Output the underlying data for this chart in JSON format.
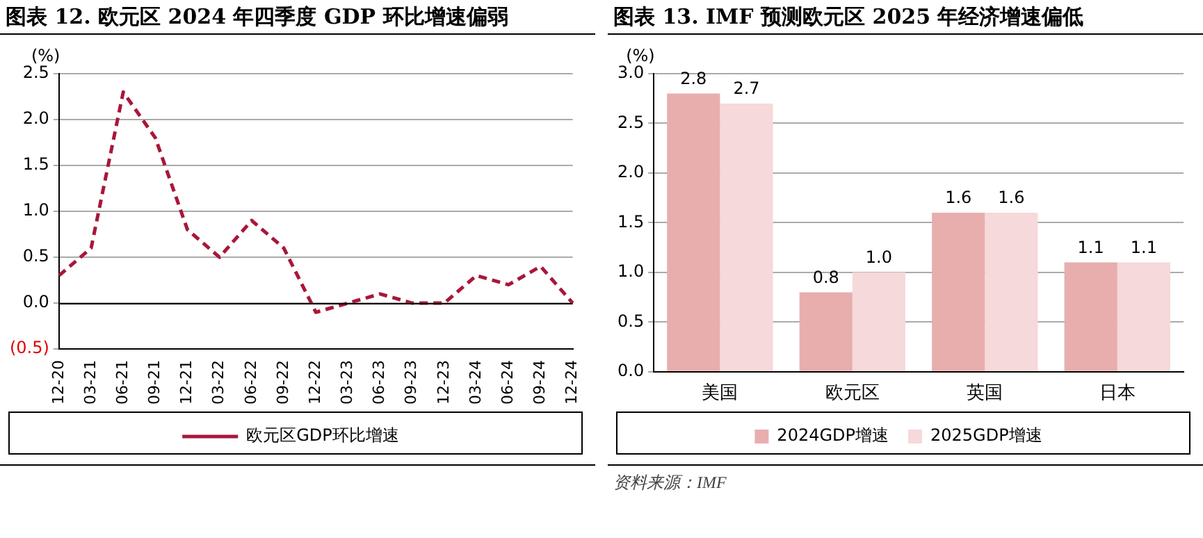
{
  "chart_data": [
    {
      "type": "line",
      "title": "图表 12. 欧元区 2024 年四季度 GDP 环比增速偏弱",
      "ylabel": "(%)",
      "categories": [
        "12-20",
        "03-21",
        "06-21",
        "09-21",
        "12-21",
        "03-22",
        "06-22",
        "09-22",
        "12-22",
        "03-23",
        "06-23",
        "09-23",
        "12-23",
        "03-24",
        "06-24",
        "09-24",
        "12-24"
      ],
      "series": [
        {
          "name": "欧元区GDP环比增速",
          "color": "#a8173a",
          "values": [
            0.3,
            0.6,
            2.3,
            1.8,
            0.8,
            0.5,
            0.9,
            0.6,
            -0.1,
            0.0,
            0.1,
            0.0,
            0.0,
            0.3,
            0.2,
            0.4,
            0.0
          ]
        }
      ],
      "ylim": [
        -0.5,
        2.5
      ],
      "yticks": [
        {
          "value": -0.5,
          "label": "(0.5)"
        },
        {
          "value": 0,
          "label": "0.0"
        },
        {
          "value": 0.5,
          "label": "0.5"
        },
        {
          "value": 1,
          "label": "1.0"
        },
        {
          "value": 1.5,
          "label": "1.5"
        },
        {
          "value": 2,
          "label": "2.0"
        },
        {
          "value": 2.5,
          "label": "2.5"
        }
      ],
      "grid": "y",
      "legend": "bottom",
      "line_style": "dashed",
      "marker": "none"
    },
    {
      "type": "bar",
      "title": "图表 13. IMF 预测欧元区 2025 年经济增速偏低",
      "ylabel": "(%)",
      "categories": [
        "美国",
        "欧元区",
        "英国",
        "日本"
      ],
      "series": [
        {
          "name": "2024GDP增速",
          "color": "#e8aeae",
          "values": [
            2.8,
            0.8,
            1.6,
            1.1
          ],
          "value_labels": [
            "2.8",
            "0.8",
            "1.6",
            "1.1"
          ]
        },
        {
          "name": "2025GDP增速",
          "color": "#f6d9da",
          "values": [
            2.7,
            1.0,
            1.6,
            1.1
          ],
          "value_labels": [
            "2.7",
            "1.0",
            "1.6",
            "1.1"
          ]
        }
      ],
      "ylim": [
        0,
        3
      ],
      "yticks": [
        {
          "value": 0,
          "label": "0.0"
        },
        {
          "value": 0.5,
          "label": "0.5"
        },
        {
          "value": 1,
          "label": "1.0"
        },
        {
          "value": 1.5,
          "label": "1.5"
        },
        {
          "value": 2,
          "label": "2.0"
        },
        {
          "value": 2.5,
          "label": "2.5"
        },
        {
          "value": 3,
          "label": "3.0"
        }
      ],
      "grid": "y",
      "legend": "bottom",
      "annotations": [
        "资料来源：IMF"
      ]
    }
  ]
}
